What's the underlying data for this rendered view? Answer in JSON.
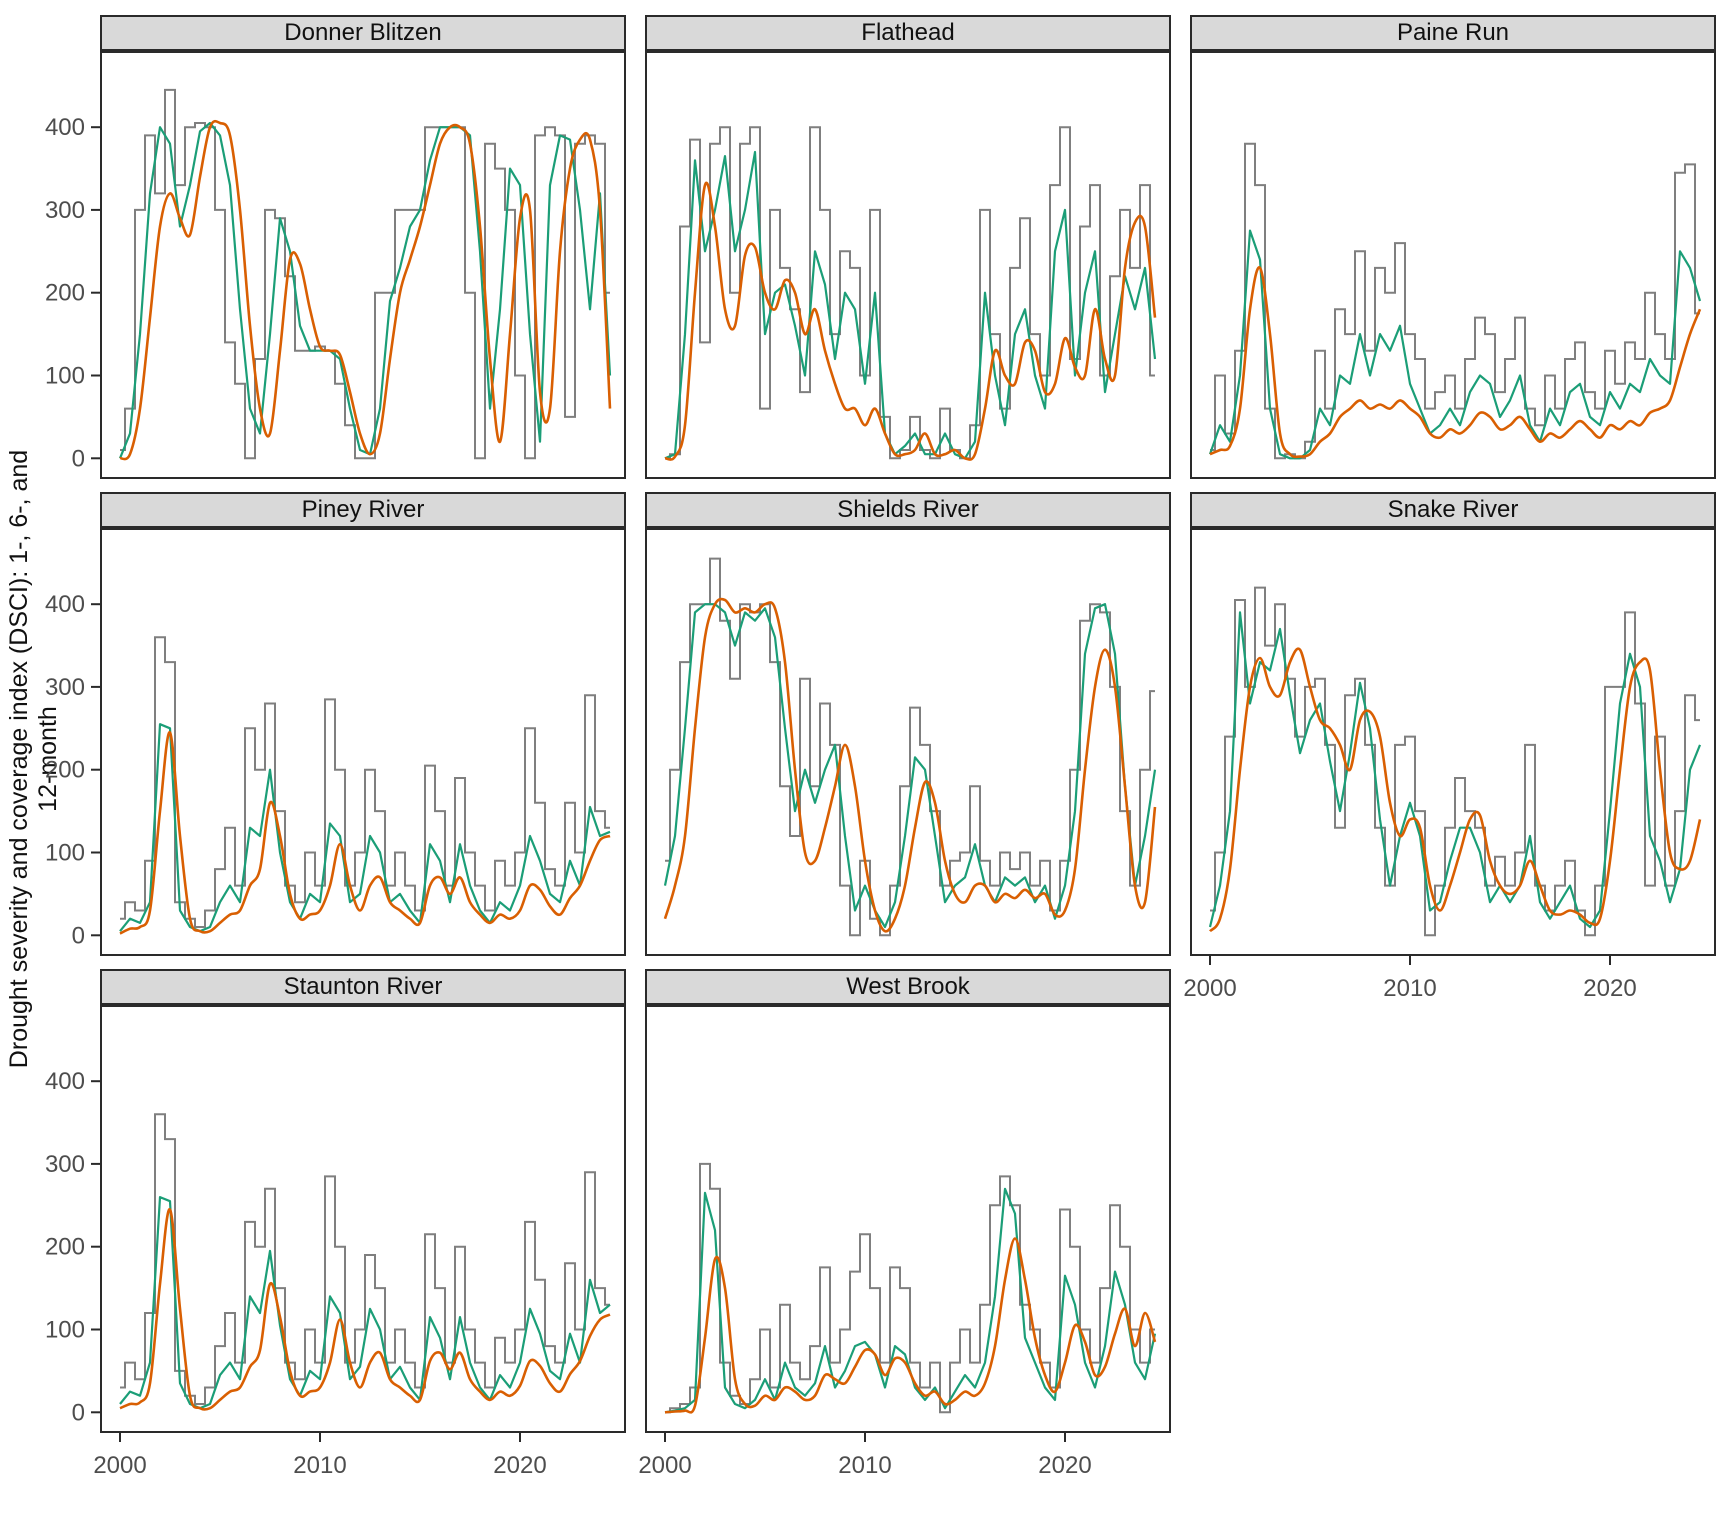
{
  "chart_data": {
    "type": "line",
    "title": "",
    "ylabel": "Drought severity and coverage index (DSCI): 1-, 6-, and 12-month",
    "x_ticks": [
      2000,
      2010,
      2020
    ],
    "y_ticks": [
      0,
      100,
      200,
      300,
      400
    ],
    "xlim": [
      1999.0,
      2025.3
    ],
    "ylim": [
      -25,
      492
    ],
    "grid": "off",
    "legend": "none",
    "x_grid": {
      "start": 2000.0,
      "step": 0.5,
      "count": 50
    },
    "series_names": [
      "1-month",
      "6-month",
      "12-month"
    ],
    "colors": {
      "1-month": "#7f7f7f",
      "6-month": "#1b9e77",
      "12-month": "#d95f02",
      "strip_background": "#d9d9d9",
      "panel_border": "#2a2a2a",
      "tick_label": "#4d4d4d"
    },
    "facets": [
      {
        "title": "Donner Blitzen",
        "m1": [
          10,
          60,
          300,
          390,
          320,
          445,
          330,
          400,
          405,
          400,
          300,
          140,
          90,
          0,
          120,
          300,
          290,
          220,
          130,
          130,
          135,
          130,
          90,
          40,
          0,
          0,
          200,
          200,
          300,
          300,
          300,
          400,
          400,
          400,
          400,
          200,
          0,
          380,
          350,
          300,
          100,
          0,
          390,
          400,
          390,
          50,
          380,
          390,
          380,
          200
        ],
        "m6": [
          0,
          30,
          150,
          320,
          400,
          380,
          280,
          330,
          395,
          405,
          390,
          330,
          180,
          60,
          30,
          150,
          290,
          250,
          160,
          130,
          130,
          130,
          120,
          60,
          10,
          5,
          60,
          190,
          230,
          280,
          300,
          360,
          400,
          400,
          400,
          390,
          250,
          60,
          180,
          350,
          330,
          150,
          20,
          330,
          390,
          385,
          300,
          180,
          320,
          100
        ],
        "m12": [
          0,
          5,
          60,
          170,
          280,
          320,
          290,
          270,
          340,
          400,
          405,
          390,
          300,
          160,
          60,
          30,
          130,
          240,
          235,
          180,
          135,
          130,
          125,
          80,
          30,
          5,
          30,
          120,
          200,
          240,
          280,
          330,
          380,
          400,
          400,
          380,
          280,
          120,
          20,
          150,
          290,
          300,
          80,
          60,
          250,
          350,
          385,
          385,
          300,
          60
        ]
      },
      {
        "title": "Flathead",
        "m1": [
          0,
          5,
          280,
          385,
          140,
          380,
          400,
          200,
          380,
          400,
          60,
          300,
          230,
          180,
          80,
          400,
          300,
          150,
          250,
          230,
          100,
          300,
          50,
          0,
          10,
          50,
          10,
          0,
          60,
          10,
          0,
          40,
          300,
          150,
          60,
          230,
          290,
          150,
          100,
          330,
          400,
          120,
          280,
          330,
          100,
          220,
          300,
          230,
          330,
          100
        ],
        "m6": [
          0,
          5,
          150,
          360,
          250,
          300,
          365,
          250,
          300,
          370,
          150,
          200,
          210,
          160,
          100,
          250,
          210,
          120,
          200,
          180,
          90,
          200,
          30,
          5,
          15,
          30,
          5,
          5,
          30,
          5,
          0,
          20,
          200,
          100,
          40,
          150,
          180,
          100,
          60,
          250,
          300,
          100,
          200,
          250,
          80,
          150,
          220,
          180,
          230,
          120
        ],
        "m12": [
          0,
          2,
          40,
          200,
          330,
          280,
          180,
          160,
          245,
          255,
          200,
          180,
          215,
          200,
          150,
          180,
          130,
          90,
          60,
          60,
          40,
          60,
          30,
          5,
          5,
          10,
          30,
          5,
          5,
          10,
          0,
          5,
          60,
          130,
          100,
          90,
          140,
          130,
          80,
          90,
          145,
          110,
          100,
          180,
          120,
          100,
          230,
          285,
          280,
          170
        ]
      },
      {
        "title": "Paine Run",
        "m1": [
          10,
          100,
          30,
          130,
          380,
          330,
          60,
          0,
          5,
          0,
          20,
          130,
          60,
          180,
          150,
          250,
          130,
          230,
          200,
          260,
          150,
          120,
          60,
          80,
          100,
          60,
          120,
          170,
          150,
          80,
          120,
          170,
          60,
          40,
          100,
          60,
          120,
          140,
          80,
          60,
          130,
          90,
          140,
          120,
          200,
          150,
          120,
          345,
          355,
          175
        ],
        "m6": [
          5,
          40,
          20,
          100,
          275,
          240,
          60,
          5,
          0,
          0,
          10,
          60,
          40,
          100,
          90,
          150,
          100,
          150,
          130,
          160,
          90,
          60,
          30,
          40,
          60,
          40,
          80,
          100,
          90,
          50,
          70,
          100,
          40,
          20,
          60,
          40,
          80,
          90,
          50,
          40,
          80,
          60,
          90,
          80,
          120,
          100,
          90,
          250,
          230,
          190
        ],
        "m12": [
          5,
          10,
          15,
          60,
          180,
          230,
          150,
          30,
          5,
          2,
          5,
          20,
          30,
          50,
          60,
          70,
          60,
          65,
          60,
          70,
          60,
          50,
          30,
          25,
          35,
          30,
          40,
          55,
          50,
          35,
          40,
          50,
          35,
          20,
          30,
          25,
          35,
          45,
          35,
          25,
          40,
          35,
          45,
          40,
          55,
          60,
          70,
          110,
          150,
          180
        ]
      },
      {
        "title": "Piney River",
        "m1": [
          20,
          40,
          30,
          90,
          360,
          330,
          40,
          20,
          10,
          30,
          80,
          130,
          60,
          250,
          200,
          280,
          150,
          60,
          40,
          100,
          60,
          285,
          200,
          60,
          100,
          200,
          150,
          60,
          100,
          60,
          30,
          205,
          150,
          60,
          190,
          100,
          60,
          30,
          90,
          60,
          100,
          250,
          160,
          80,
          60,
          160,
          100,
          290,
          150,
          130
        ],
        "m6": [
          5,
          20,
          15,
          40,
          255,
          250,
          30,
          10,
          5,
          10,
          40,
          60,
          40,
          130,
          120,
          200,
          100,
          40,
          20,
          50,
          40,
          135,
          120,
          40,
          50,
          120,
          100,
          40,
          50,
          30,
          15,
          110,
          90,
          40,
          110,
          60,
          30,
          15,
          40,
          30,
          60,
          120,
          90,
          50,
          40,
          90,
          60,
          155,
          120,
          125
        ],
        "m12": [
          2,
          8,
          10,
          30,
          150,
          245,
          120,
          20,
          5,
          5,
          15,
          25,
          30,
          60,
          80,
          160,
          120,
          50,
          20,
          25,
          30,
          60,
          110,
          60,
          30,
          60,
          70,
          40,
          30,
          20,
          15,
          60,
          70,
          50,
          70,
          40,
          25,
          15,
          25,
          20,
          30,
          60,
          55,
          35,
          25,
          45,
          60,
          90,
          115,
          120
        ]
      },
      {
        "title": "Shields River",
        "m1": [
          90,
          200,
          330,
          400,
          400,
          455,
          380,
          310,
          400,
          390,
          400,
          330,
          180,
          120,
          310,
          180,
          280,
          230,
          60,
          0,
          90,
          20,
          0,
          60,
          180,
          275,
          230,
          150,
          60,
          90,
          100,
          180,
          90,
          60,
          100,
          80,
          100,
          60,
          90,
          30,
          90,
          200,
          380,
          400,
          390,
          300,
          150,
          60,
          200,
          295
        ],
        "m6": [
          60,
          120,
          250,
          390,
          400,
          400,
          390,
          350,
          390,
          380,
          395,
          360,
          250,
          150,
          200,
          160,
          200,
          230,
          120,
          30,
          60,
          30,
          10,
          40,
          120,
          215,
          200,
          120,
          40,
          60,
          70,
          110,
          60,
          40,
          70,
          60,
          70,
          40,
          60,
          20,
          60,
          150,
          340,
          395,
          400,
          340,
          180,
          60,
          120,
          200
        ],
        "m12": [
          20,
          60,
          120,
          250,
          360,
          400,
          405,
          390,
          395,
          390,
          400,
          395,
          330,
          200,
          100,
          90,
          130,
          180,
          230,
          180,
          90,
          30,
          5,
          20,
          60,
          130,
          185,
          160,
          90,
          50,
          40,
          60,
          60,
          40,
          50,
          45,
          55,
          45,
          50,
          25,
          30,
          80,
          200,
          300,
          345,
          300,
          180,
          60,
          40,
          155
        ]
      },
      {
        "title": "Snake River",
        "m1": [
          30,
          100,
          240,
          405,
          300,
          420,
          350,
          400,
          310,
          240,
          300,
          310,
          230,
          130,
          290,
          310,
          230,
          130,
          60,
          230,
          240,
          150,
          0,
          60,
          130,
          190,
          150,
          130,
          60,
          95,
          60,
          100,
          230,
          60,
          30,
          60,
          90,
          30,
          0,
          60,
          300,
          300,
          390,
          280,
          60,
          240,
          60,
          150,
          290,
          260
        ],
        "m6": [
          10,
          60,
          150,
          390,
          280,
          330,
          320,
          370,
          290,
          220,
          260,
          280,
          210,
          150,
          220,
          305,
          250,
          140,
          60,
          120,
          160,
          120,
          30,
          40,
          90,
          130,
          130,
          100,
          40,
          60,
          40,
          60,
          120,
          40,
          20,
          40,
          60,
          20,
          10,
          30,
          150,
          280,
          340,
          300,
          120,
          90,
          40,
          80,
          200,
          230
        ],
        "m12": [
          5,
          20,
          80,
          200,
          300,
          335,
          300,
          290,
          330,
          345,
          300,
          260,
          250,
          230,
          200,
          260,
          270,
          240,
          160,
          120,
          140,
          130,
          60,
          30,
          60,
          100,
          140,
          145,
          90,
          60,
          50,
          60,
          90,
          60,
          30,
          25,
          30,
          25,
          15,
          20,
          90,
          200,
          300,
          330,
          320,
          200,
          100,
          80,
          90,
          140
        ]
      },
      {
        "title": "Staunton River",
        "m1": [
          30,
          60,
          40,
          120,
          360,
          330,
          50,
          20,
          10,
          30,
          80,
          120,
          60,
          230,
          200,
          270,
          150,
          60,
          40,
          100,
          60,
          285,
          200,
          60,
          100,
          190,
          150,
          60,
          100,
          60,
          30,
          215,
          150,
          60,
          200,
          100,
          60,
          30,
          90,
          60,
          100,
          230,
          160,
          80,
          60,
          180,
          100,
          290,
          150,
          130
        ],
        "m6": [
          10,
          25,
          20,
          60,
          260,
          255,
          35,
          10,
          5,
          10,
          45,
          60,
          40,
          140,
          120,
          195,
          105,
          40,
          20,
          50,
          40,
          140,
          120,
          40,
          55,
          125,
          100,
          40,
          55,
          30,
          15,
          115,
          90,
          40,
          115,
          60,
          30,
          15,
          45,
          30,
          60,
          125,
          95,
          50,
          40,
          95,
          60,
          160,
          120,
          130
        ],
        "m12": [
          5,
          10,
          12,
          35,
          155,
          245,
          125,
          20,
          5,
          5,
          15,
          25,
          30,
          55,
          75,
          155,
          115,
          50,
          20,
          25,
          30,
          60,
          112,
          60,
          30,
          60,
          72,
          40,
          30,
          20,
          15,
          62,
          72,
          52,
          72,
          40,
          25,
          15,
          25,
          20,
          32,
          62,
          56,
          35,
          25,
          46,
          62,
          92,
          112,
          118
        ]
      },
      {
        "title": "West Brook",
        "m1": [
          0,
          5,
          10,
          30,
          300,
          270,
          60,
          20,
          10,
          40,
          100,
          30,
          130,
          60,
          40,
          80,
          175,
          60,
          100,
          170,
          215,
          150,
          60,
          175,
          150,
          60,
          30,
          60,
          0,
          60,
          100,
          60,
          130,
          250,
          285,
          250,
          130,
          100,
          60,
          30,
          245,
          200,
          100,
          60,
          150,
          250,
          200,
          100,
          60,
          100
        ],
        "m6": [
          0,
          2,
          5,
          15,
          265,
          220,
          30,
          10,
          5,
          15,
          40,
          15,
          60,
          30,
          20,
          35,
          80,
          30,
          50,
          80,
          85,
          70,
          30,
          80,
          70,
          30,
          15,
          30,
          5,
          25,
          45,
          30,
          60,
          140,
          270,
          240,
          90,
          60,
          30,
          15,
          165,
          130,
          60,
          30,
          80,
          170,
          130,
          60,
          40,
          95
        ],
        "m12": [
          0,
          1,
          2,
          8,
          90,
          185,
          150,
          40,
          10,
          8,
          20,
          15,
          30,
          25,
          15,
          20,
          45,
          40,
          35,
          55,
          75,
          70,
          45,
          65,
          60,
          35,
          20,
          25,
          10,
          15,
          25,
          20,
          35,
          80,
          160,
          210,
          160,
          90,
          45,
          25,
          60,
          105,
          85,
          45,
          55,
          95,
          125,
          80,
          120,
          85
        ]
      }
    ]
  },
  "layout_labels": {
    "x_tick_labels": [
      "2000",
      "2010",
      "2020"
    ],
    "y_tick_labels": [
      "0",
      "100",
      "200",
      "300",
      "400"
    ]
  }
}
